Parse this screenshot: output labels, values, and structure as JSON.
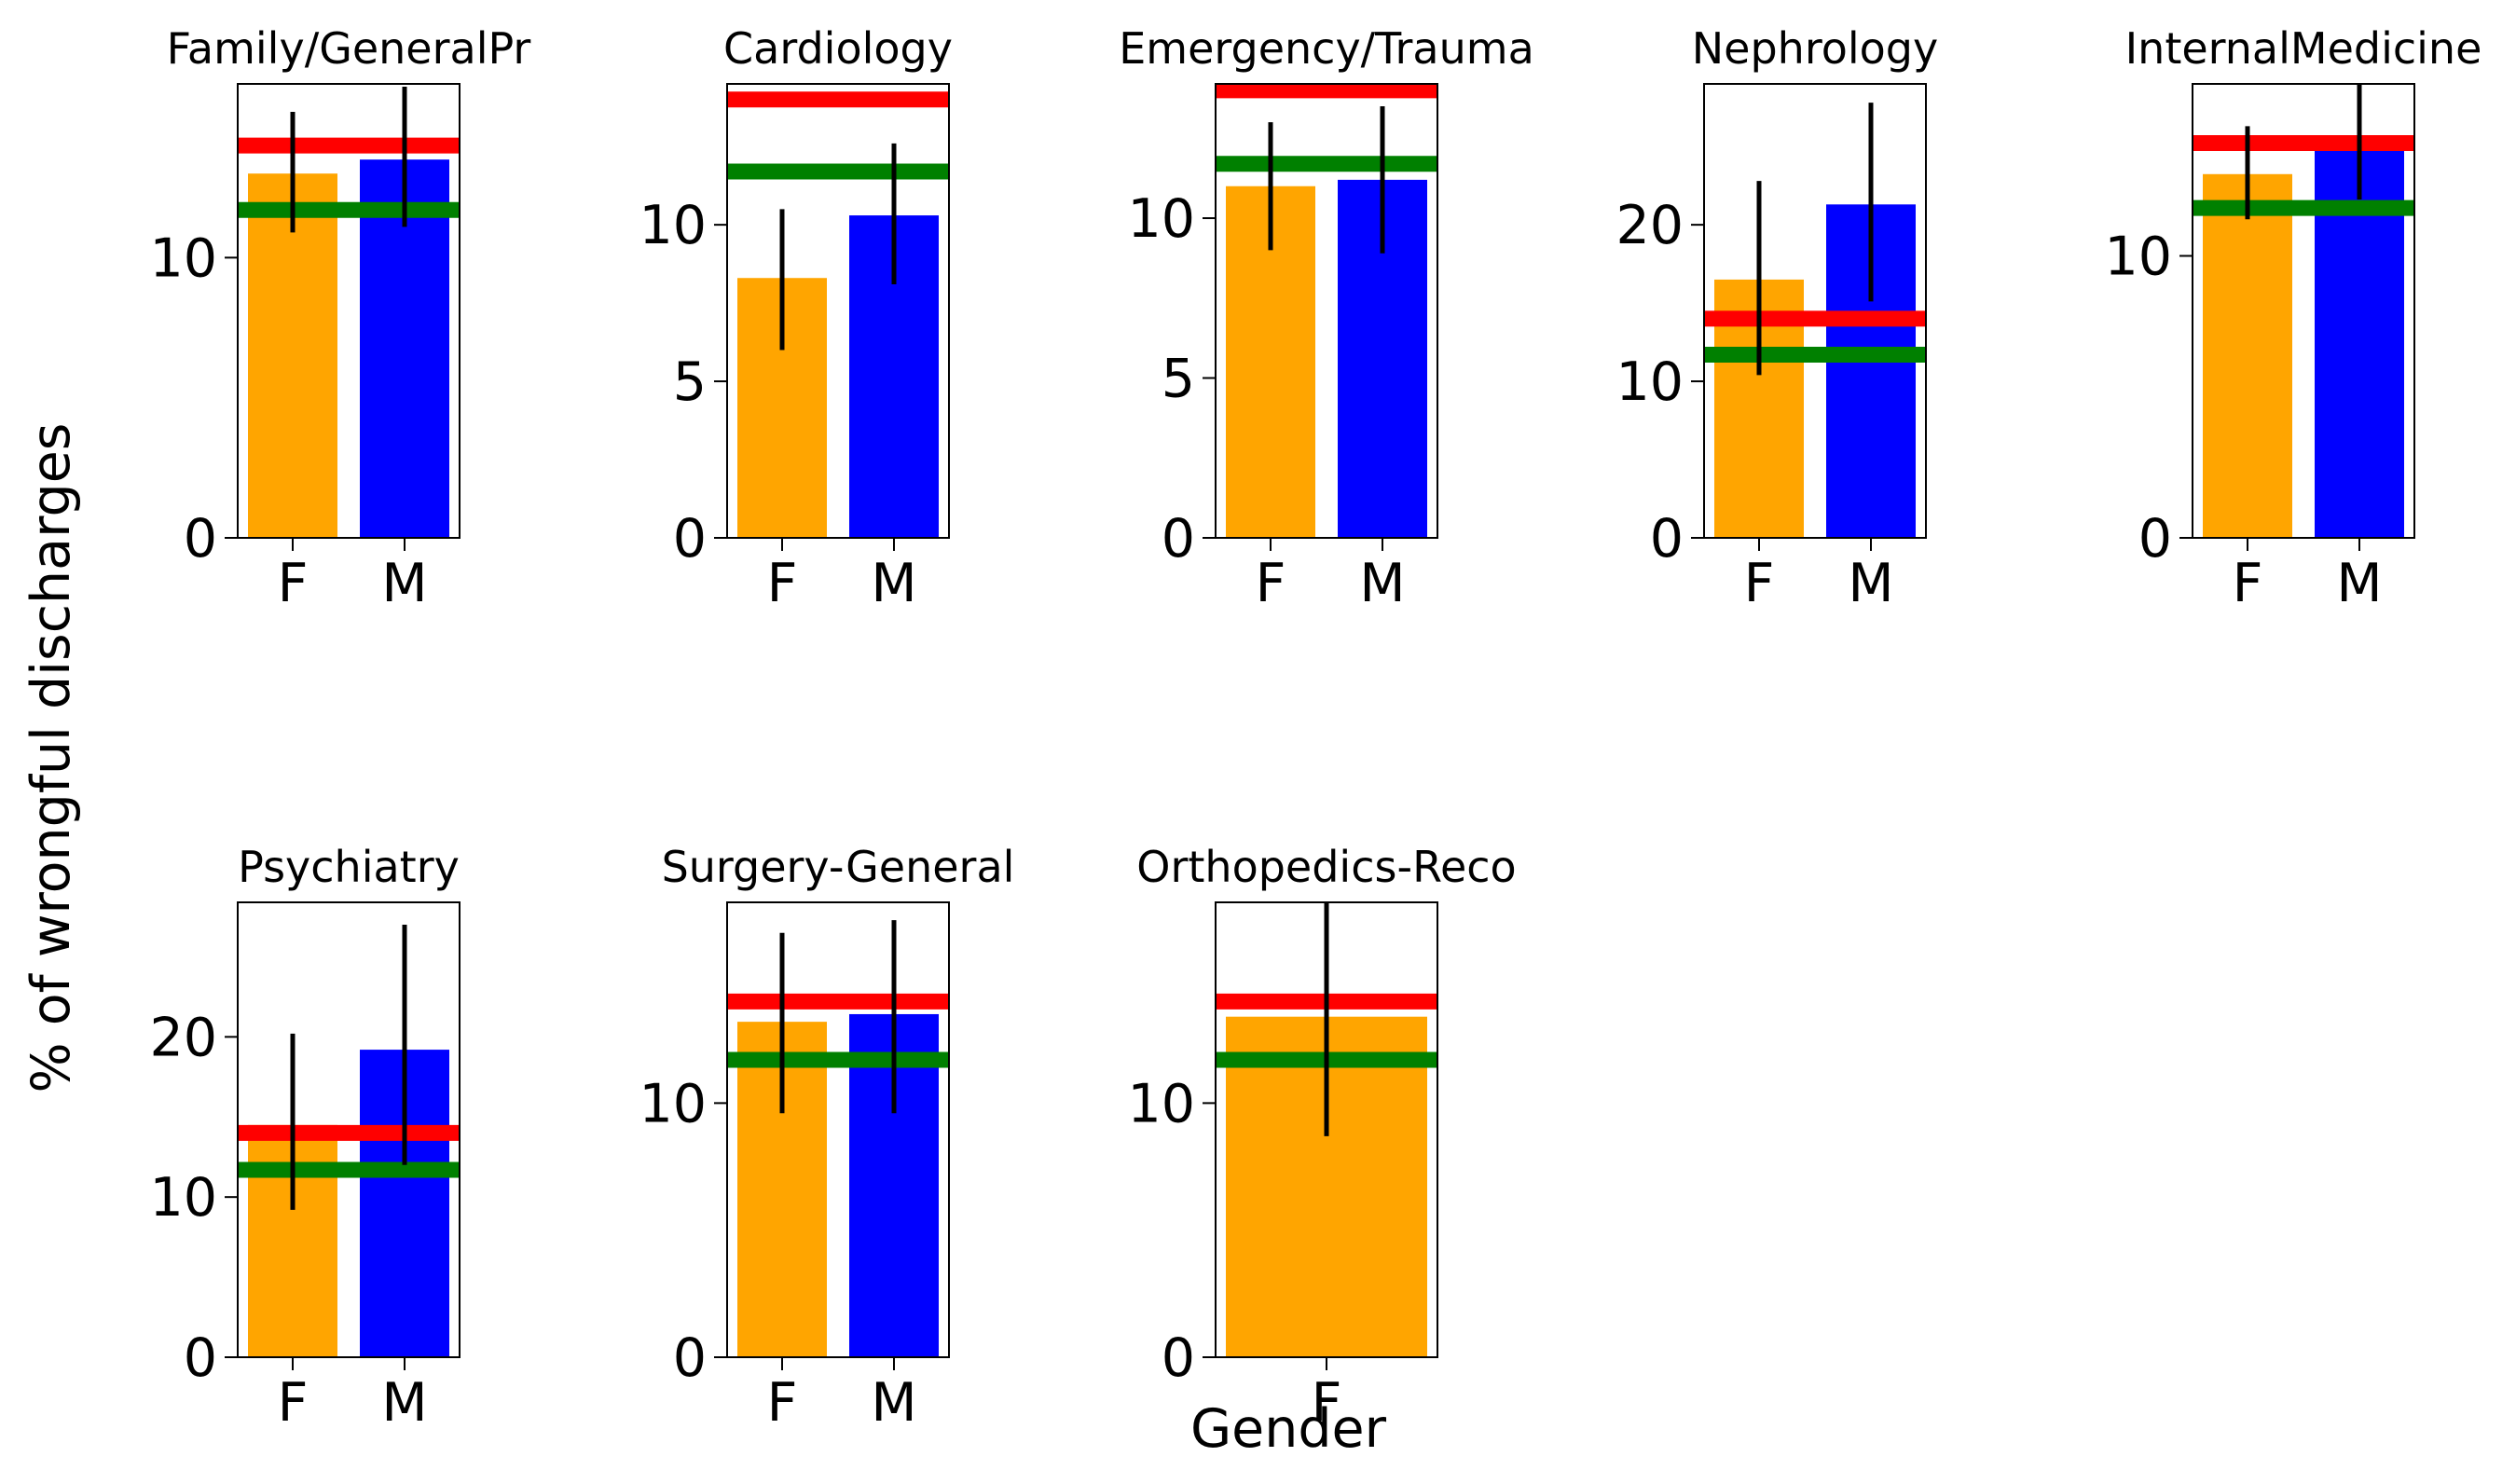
{
  "figure": {
    "ylabel": "% of wrongful discharges",
    "xlabel": "Gender"
  },
  "colors": {
    "F": "#ffa500",
    "M": "#0000ff",
    "red_line": "#ff0000",
    "green_line": "#008000",
    "error": "#000000"
  },
  "chart_data": [
    {
      "type": "bar",
      "title": "Family/GeneralPr",
      "categories": [
        "F",
        "M"
      ],
      "values": [
        13.0,
        13.5
      ],
      "err_low": [
        10.9,
        11.1
      ],
      "err_high": [
        15.2,
        16.1
      ],
      "red_line": 14.0,
      "green_line": 11.7,
      "ylim": [
        0,
        16.2
      ],
      "yticks": [
        0,
        10
      ]
    },
    {
      "type": "bar",
      "title": "Cardiology",
      "categories": [
        "F",
        "M"
      ],
      "values": [
        8.3,
        10.3
      ],
      "err_low": [
        6.0,
        8.1
      ],
      "err_high": [
        10.5,
        12.6
      ],
      "red_line": 14.0,
      "green_line": 11.7,
      "ylim": [
        0,
        14.5
      ],
      "yticks": [
        0,
        5,
        10
      ]
    },
    {
      "type": "bar",
      "title": "Emergency/Trauma",
      "categories": [
        "F",
        "M"
      ],
      "values": [
        11.0,
        11.2
      ],
      "err_low": [
        9.0,
        8.9
      ],
      "err_high": [
        13.0,
        13.5
      ],
      "red_line": 14.0,
      "green_line": 11.7,
      "ylim": [
        0,
        14.2
      ],
      "yticks": [
        0,
        5,
        10
      ]
    },
    {
      "type": "bar",
      "title": "Nephrology",
      "categories": [
        "F",
        "M"
      ],
      "values": [
        16.5,
        21.3
      ],
      "err_low": [
        10.4,
        15.1
      ],
      "err_high": [
        22.8,
        27.8
      ],
      "red_line": 14.0,
      "green_line": 11.7,
      "ylim": [
        0,
        29.0
      ],
      "yticks": [
        0,
        10,
        20
      ]
    },
    {
      "type": "bar",
      "title": "InternalMedicine",
      "categories": [
        "F",
        "M"
      ],
      "values": [
        12.9,
        14.0
      ],
      "err_low": [
        11.3,
        12.0
      ],
      "err_high": [
        14.6,
        16.1
      ],
      "red_line": 14.0,
      "green_line": 11.7,
      "ylim": [
        0,
        16.1
      ],
      "yticks": [
        0,
        10
      ]
    },
    {
      "type": "bar",
      "title": "Psychiatry",
      "categories": [
        "F",
        "M"
      ],
      "values": [
        14.5,
        19.2
      ],
      "err_low": [
        9.2,
        12.0
      ],
      "err_high": [
        20.2,
        27.0
      ],
      "red_line": 14.0,
      "green_line": 11.7,
      "ylim": [
        0,
        28.4
      ],
      "yticks": [
        0,
        10,
        20
      ]
    },
    {
      "type": "bar",
      "title": "Surgery-General",
      "categories": [
        "F",
        "M"
      ],
      "values": [
        13.2,
        13.5
      ],
      "err_low": [
        9.6,
        9.6
      ],
      "err_high": [
        16.7,
        17.2
      ],
      "red_line": 14.0,
      "green_line": 11.7,
      "ylim": [
        0,
        17.9
      ],
      "yticks": [
        0,
        10
      ]
    },
    {
      "type": "bar",
      "title": "Orthopedics-Reco",
      "categories": [
        "F"
      ],
      "values": [
        13.4
      ],
      "err_low": [
        8.7
      ],
      "err_high": [
        17.9
      ],
      "red_line": 14.0,
      "green_line": 11.7,
      "ylim": [
        0,
        17.9
      ],
      "yticks": [
        0,
        10
      ]
    }
  ]
}
